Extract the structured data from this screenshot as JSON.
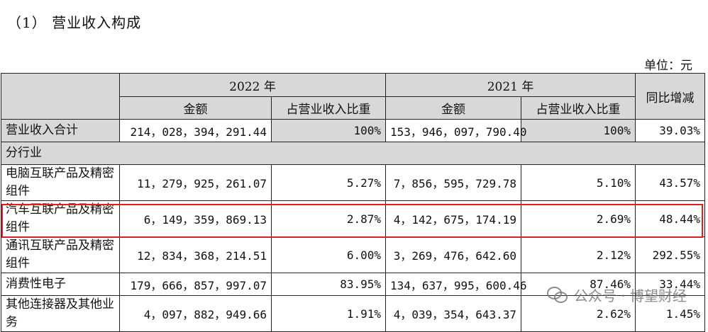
{
  "section_title": "（1）  营业收入构成",
  "unit_label": "单位：元",
  "header": {
    "year_2022": "2022 年",
    "year_2021": "2021 年",
    "yoy": "同比增减",
    "amount": "金额",
    "share": "占营业收入比重"
  },
  "total_row": {
    "label": "营业收入合计",
    "amount_2022": "214，028，394，291.44",
    "share_2022": "100%",
    "amount_2021": "153，946，097，790.40",
    "share_2021": "100%",
    "yoy": "39.03%"
  },
  "segment_header": "分行业",
  "rows": [
    {
      "label": "电脑互联产品及精密组件",
      "amount_2022": "11，279，925，261.07",
      "share_2022": "5.27%",
      "amount_2021": "7，856，595，729.78",
      "share_2021": "5.10%",
      "yoy": "43.57%"
    },
    {
      "label": "汽车互联产品及精密组件",
      "amount_2022": "6，149，359，869.13",
      "share_2022": "2.87%",
      "amount_2021": "4，142，675，174.19",
      "share_2021": "2.69%",
      "yoy": "48.44%"
    },
    {
      "label": "通讯互联产品及精密组件",
      "amount_2022": "12，834，368，214.51",
      "share_2022": "6.00%",
      "amount_2021": "3，269，476，642.60",
      "share_2021": "2.12%",
      "yoy": "292.55%"
    },
    {
      "label": "消费性电子",
      "amount_2022": "179，666，857，997.07",
      "share_2022": "83.95%",
      "amount_2021": "134，637，995，600.46",
      "share_2021": "87.46%",
      "yoy": "33.44%"
    },
    {
      "label": "其他连接器及其他业务",
      "amount_2022": "4，097，882，949.66",
      "share_2022": "1.91%",
      "amount_2021": "4，039，354，643.37",
      "share_2021": "2.62%",
      "yoy": "1.45%"
    }
  ],
  "watermark": "公众号 · 博望财经",
  "highlight_color": "#e02020"
}
